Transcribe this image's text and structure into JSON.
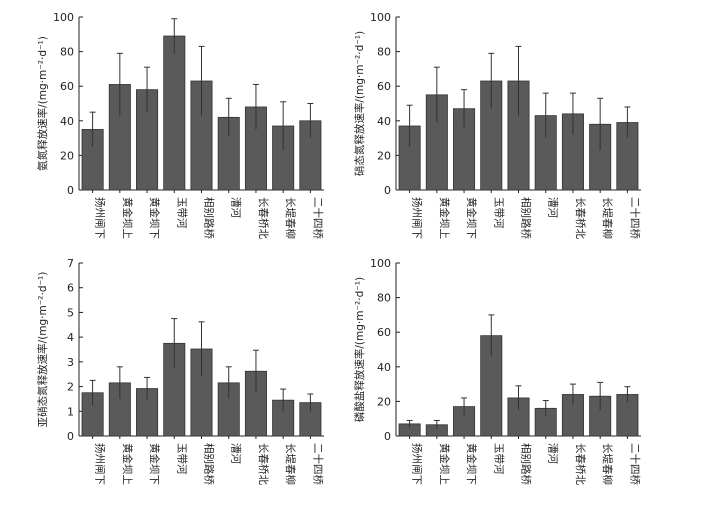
{
  "chart_data": [
    {
      "type": "bar",
      "ylabel": "氨氮释放速率/(mg·m⁻²·d⁻¹)",
      "ylim": [
        0,
        100
      ],
      "yticks": [
        0,
        20,
        40,
        60,
        80,
        100
      ],
      "categories": [
        "扬州闸下",
        "黄金坝上",
        "黄金坝下",
        "玉带河",
        "相别路桥",
        "漕河",
        "长春桥北",
        "长堤春柳",
        "二十四桥"
      ],
      "values": [
        35,
        61,
        58,
        89,
        63,
        42,
        48,
        37,
        40
      ],
      "errors": [
        10,
        18,
        13,
        10,
        20,
        11,
        13,
        14,
        10
      ]
    },
    {
      "type": "bar",
      "ylabel": "硝态氮释放速率/(mg·m⁻²·d⁻¹)",
      "ylim": [
        0,
        100
      ],
      "yticks": [
        0,
        20,
        40,
        60,
        80,
        100
      ],
      "categories": [
        "扬州闸下",
        "黄金坝上",
        "黄金坝下",
        "玉带河",
        "相别路桥",
        "漕河",
        "长春桥北",
        "长堤春柳",
        "二十四桥"
      ],
      "values": [
        37,
        55,
        47,
        63,
        63,
        43,
        44,
        38,
        39
      ],
      "errors": [
        12,
        16,
        11,
        16,
        20,
        13,
        12,
        15,
        9
      ]
    },
    {
      "type": "bar",
      "ylabel": "亚硝态氮释放速率/(mg·m⁻²·d⁻¹)",
      "ylim": [
        0,
        7
      ],
      "yticks": [
        0,
        1,
        2,
        3,
        4,
        5,
        6,
        7
      ],
      "categories": [
        "扬州闸下",
        "黄金坝上",
        "黄金坝下",
        "玉带河",
        "相别路桥",
        "漕河",
        "长春桥北",
        "长堤春柳",
        "二十四桥"
      ],
      "values": [
        1.75,
        2.15,
        1.92,
        3.75,
        3.52,
        2.15,
        2.62,
        1.45,
        1.35
      ],
      "errors": [
        0.5,
        0.65,
        0.45,
        1.0,
        1.1,
        0.65,
        0.85,
        0.45,
        0.35
      ]
    },
    {
      "type": "bar",
      "ylabel": "磷酸盐释放速率/(mg·m⁻²·d⁻¹)",
      "ylim": [
        0,
        100
      ],
      "yticks": [
        0,
        20,
        40,
        60,
        80,
        100
      ],
      "categories": [
        "扬州闸下",
        "黄金坝上",
        "黄金坝下",
        "玉带河",
        "相别路桥",
        "漕河",
        "长春桥北",
        "长堤春柳",
        "二十四桥"
      ],
      "values": [
        7,
        6.5,
        17,
        58,
        22,
        16,
        24,
        23,
        24
      ],
      "errors": [
        2,
        2.5,
        5,
        12,
        7,
        4.5,
        6,
        8,
        4.5
      ]
    }
  ]
}
